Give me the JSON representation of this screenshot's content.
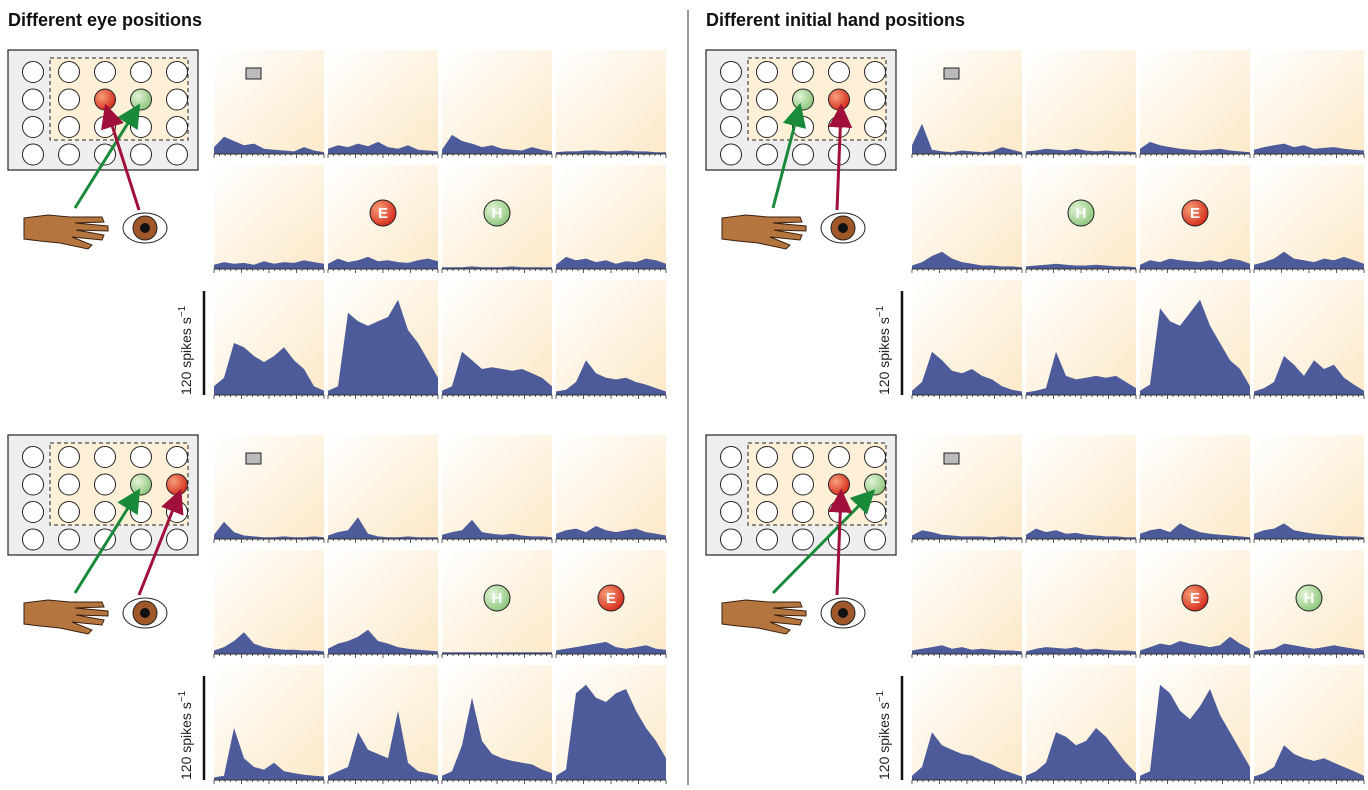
{
  "sections": [
    {
      "title": "Different eye positions",
      "blocks": [
        {
          "scale_bar": {
            "value": 120,
            "unit": "spikes s",
            "exponent": "−1"
          },
          "rows": [
            [
              {
                "values": [
                  8,
                  20,
                  15,
                  10,
                  12,
                  6,
                  5,
                  4,
                  3,
                  8,
                  4,
                  2
                ]
              },
              {
                "values": [
                  6,
                  10,
                  8,
                  12,
                  9,
                  14,
                  8,
                  6,
                  10,
                  5,
                  4,
                  3
                ]
              },
              {
                "values": [
                  5,
                  22,
                  15,
                  12,
                  8,
                  10,
                  6,
                  5,
                  4,
                  8,
                  5,
                  3
                ]
              },
              {
                "values": [
                  2,
                  3,
                  3,
                  4,
                  4,
                  3,
                  3,
                  4,
                  3,
                  3,
                  2,
                  2
                ]
              }
            ],
            [
              {
                "values": [
                  5,
                  8,
                  6,
                  7,
                  5,
                  9,
                  6,
                  8,
                  7,
                  10,
                  8,
                  6
                ]
              },
              {
                "values": [
                  6,
                  12,
                  8,
                  10,
                  14,
                  9,
                  10,
                  8,
                  7,
                  10,
                  12,
                  9
                ],
                "marker": "E"
              },
              {
                "values": [
                  2,
                  2,
                  2,
                  3,
                  2,
                  2,
                  2,
                  3,
                  2,
                  2,
                  2,
                  2
                ],
                "marker": "H"
              },
              {
                "values": [
                  5,
                  14,
                  10,
                  12,
                  8,
                  10,
                  6,
                  9,
                  8,
                  12,
                  10,
                  6
                ]
              }
            ],
            [
              {
                "values": [
                  10,
                  20,
                  60,
                  55,
                  45,
                  38,
                  45,
                  55,
                  40,
                  30,
                  10,
                  5
                ]
              },
              {
                "values": [
                  5,
                  10,
                  95,
                  85,
                  80,
                  85,
                  90,
                  110,
                  75,
                  60,
                  40,
                  20
                ]
              },
              {
                "values": [
                  5,
                  10,
                  50,
                  40,
                  30,
                  32,
                  30,
                  28,
                  30,
                  25,
                  20,
                  10
                ]
              },
              {
                "values": [
                  4,
                  6,
                  15,
                  40,
                  25,
                  20,
                  18,
                  20,
                  15,
                  12,
                  8,
                  4
                ]
              }
            ]
          ]
        },
        {
          "scale_bar": {
            "value": 120,
            "unit": "spikes s",
            "exponent": "−1"
          },
          "rows": [
            [
              {
                "values": [
                  5,
                  20,
                  8,
                  4,
                  3,
                  2,
                  2,
                  3,
                  2,
                  2,
                  3,
                  2
                ]
              },
              {
                "values": [
                  4,
                  8,
                  10,
                  25,
                  6,
                  3,
                  2,
                  2,
                  3,
                  2,
                  2,
                  2
                ]
              },
              {
                "values": [
                  5,
                  8,
                  10,
                  22,
                  8,
                  6,
                  5,
                  6,
                  4,
                  3,
                  3,
                  2
                ]
              },
              {
                "values": [
                  6,
                  10,
                  12,
                  8,
                  15,
                  10,
                  8,
                  10,
                  12,
                  8,
                  6,
                  4
                ]
              }
            ],
            [
              {
                "values": [
                  4,
                  8,
                  15,
                  25,
                  12,
                  8,
                  6,
                  5,
                  5,
                  4,
                  4,
                  3
                ]
              },
              {
                "values": [
                  6,
                  12,
                  15,
                  20,
                  28,
                  15,
                  12,
                  8,
                  6,
                  5,
                  4,
                  3
                ]
              },
              {
                "values": [
                  2,
                  2,
                  2,
                  2,
                  2,
                  2,
                  2,
                  2,
                  2,
                  2,
                  2,
                  2
                ],
                "marker": "H"
              },
              {
                "values": [
                  4,
                  6,
                  8,
                  10,
                  12,
                  14,
                  8,
                  6,
                  8,
                  10,
                  6,
                  5
                ],
                "marker": "E"
              }
            ],
            [
              {
                "values": [
                  3,
                  5,
                  60,
                  25,
                  15,
                  12,
                  20,
                  10,
                  8,
                  6,
                  5,
                  4
                ]
              },
              {
                "values": [
                  5,
                  10,
                  15,
                  55,
                  35,
                  30,
                  25,
                  80,
                  20,
                  10,
                  8,
                  5
                ]
              },
              {
                "values": [
                  5,
                  10,
                  40,
                  95,
                  45,
                  30,
                  25,
                  22,
                  20,
                  18,
                  12,
                  8
                ]
              },
              {
                "values": [
                  5,
                  12,
                  100,
                  110,
                  95,
                  90,
                  100,
                  105,
                  80,
                  60,
                  45,
                  25
                ]
              }
            ]
          ]
        }
      ]
    },
    {
      "title": "Different initial hand positions",
      "blocks": [
        {
          "scale_bar": {
            "value": 120,
            "unit": "spikes s",
            "exponent": "−1"
          },
          "rows": [
            [
              {
                "values": [
                  10,
                  35,
                  5,
                  3,
                  2,
                  4,
                  3,
                  2,
                  3,
                  8,
                  5,
                  2
                ]
              },
              {
                "values": [
                  3,
                  4,
                  6,
                  5,
                  4,
                  6,
                  4,
                  3,
                  4,
                  3,
                  3,
                  2
                ]
              },
              {
                "values": [
                  6,
                  14,
                  10,
                  8,
                  6,
                  5,
                  4,
                  5,
                  6,
                  4,
                  3,
                  2
                ]
              },
              {
                "values": [
                  5,
                  8,
                  10,
                  12,
                  8,
                  10,
                  6,
                  7,
                  8,
                  6,
                  5,
                  4
                ]
              }
            ],
            [
              {
                "values": [
                  4,
                  8,
                  15,
                  20,
                  12,
                  8,
                  6,
                  4,
                  4,
                  3,
                  3,
                  2
                ]
              },
              {
                "values": [
                  3,
                  4,
                  5,
                  6,
                  5,
                  4,
                  4,
                  5,
                  4,
                  3,
                  3,
                  2
                ],
                "marker": "H"
              },
              {
                "values": [
                  5,
                  10,
                  8,
                  12,
                  10,
                  9,
                  8,
                  10,
                  8,
                  12,
                  10,
                  6
                ],
                "marker": "E"
              },
              {
                "values": [
                  5,
                  8,
                  12,
                  20,
                  12,
                  10,
                  8,
                  12,
                  10,
                  14,
                  10,
                  6
                ]
              }
            ],
            [
              {
                "values": [
                  5,
                  15,
                  50,
                  40,
                  28,
                  25,
                  30,
                  22,
                  18,
                  10,
                  6,
                  4
                ]
              },
              {
                "values": [
                  3,
                  5,
                  8,
                  50,
                  22,
                  18,
                  20,
                  22,
                  20,
                  22,
                  15,
                  8
                ]
              },
              {
                "values": [
                  5,
                  12,
                  100,
                  85,
                  80,
                  95,
                  110,
                  80,
                  60,
                  40,
                  30,
                  10
                ]
              },
              {
                "values": [
                  4,
                  8,
                  15,
                  45,
                  35,
                  22,
                  40,
                  30,
                  35,
                  20,
                  12,
                  5
                ]
              }
            ]
          ]
        },
        {
          "scale_bar": {
            "value": 120,
            "unit": "spikes s",
            "exponent": "−1"
          },
          "rows": [
            [
              {
                "values": [
                  4,
                  10,
                  8,
                  5,
                  4,
                  3,
                  3,
                  3,
                  2,
                  3,
                  2,
                  2
                ]
              },
              {
                "values": [
                  5,
                  12,
                  8,
                  10,
                  6,
                  7,
                  5,
                  4,
                  3,
                  3,
                  2,
                  2
                ]
              },
              {
                "values": [
                  6,
                  10,
                  12,
                  8,
                  18,
                  12,
                  8,
                  6,
                  5,
                  4,
                  3,
                  2
                ]
              },
              {
                "values": [
                  6,
                  10,
                  12,
                  18,
                  10,
                  8,
                  6,
                  5,
                  4,
                  3,
                  3,
                  2
                ]
              }
            ],
            [
              {
                "values": [
                  4,
                  6,
                  8,
                  10,
                  6,
                  8,
                  5,
                  6,
                  5,
                  4,
                  4,
                  3
                ]
              },
              {
                "values": [
                  3,
                  6,
                  8,
                  7,
                  6,
                  8,
                  5,
                  6,
                  5,
                  4,
                  4,
                  3
                ]
              },
              {
                "values": [
                  4,
                  8,
                  12,
                  10,
                  15,
                  12,
                  10,
                  8,
                  10,
                  20,
                  12,
                  6
                ],
                "marker": "E"
              },
              {
                "values": [
                  3,
                  5,
                  6,
                  12,
                  10,
                  8,
                  6,
                  8,
                  10,
                  8,
                  6,
                  4
                ],
                "marker": "H"
              }
            ],
            [
              {
                "values": [
                  5,
                  15,
                  55,
                  40,
                  35,
                  30,
                  28,
                  22,
                  18,
                  12,
                  8,
                  4
                ]
              },
              {
                "values": [
                  5,
                  10,
                  20,
                  55,
                  50,
                  40,
                  45,
                  60,
                  50,
                  35,
                  20,
                  8
                ]
              },
              {
                "values": [
                  5,
                  10,
                  110,
                  100,
                  80,
                  70,
                  85,
                  105,
                  75,
                  55,
                  35,
                  15
                ]
              },
              {
                "values": [
                  4,
                  8,
                  15,
                  40,
                  30,
                  25,
                  22,
                  25,
                  20,
                  15,
                  10,
                  5
                ]
              }
            ]
          ]
        }
      ]
    }
  ]
}
